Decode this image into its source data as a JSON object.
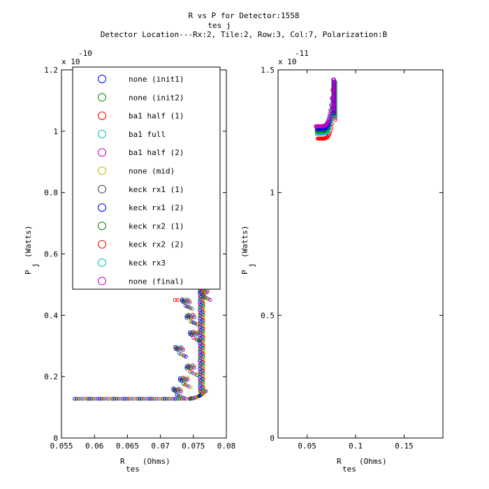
{
  "title": {
    "line1": "R    vs P  for Detector:1558",
    "line1_sub": "tes     j",
    "line2": "Detector Location---Rx:2, Tile:2, Row:3, Col:7, Polarization:B"
  },
  "series": [
    {
      "name": "none (init1)",
      "color": "#0000ff"
    },
    {
      "name": "none (init2)",
      "color": "#008000"
    },
    {
      "name": "ba1 half (1)",
      "color": "#ff0000"
    },
    {
      "name": "ba1 full",
      "color": "#00bfbf"
    },
    {
      "name": "ba1 half (2)",
      "color": "#bf00bf"
    },
    {
      "name": "none (mid)",
      "color": "#bfbf00"
    },
    {
      "name": "keck rx1 (1)",
      "color": "#404040"
    },
    {
      "name": "keck rx1 (2)",
      "color": "#0000ff"
    },
    {
      "name": "keck rx2 (1)",
      "color": "#008000"
    },
    {
      "name": "keck rx2 (2)",
      "color": "#ff0000"
    },
    {
      "name": "keck rx3",
      "color": "#00bfbf"
    },
    {
      "name": "none (final)",
      "color": "#bf00bf"
    }
  ],
  "chart_data": [
    {
      "type": "scatter",
      "xlabel": "R",
      "xlabel_sub": "tes",
      "xlabel_unit": "(Ohms)",
      "ylabel": "P",
      "ylabel_sub": "j",
      "ylabel_unit": "(Watts)",
      "xlim": [
        0.055,
        0.08
      ],
      "ylim": [
        0,
        1.2e-10
      ],
      "x_ticks": [
        0.055,
        0.06,
        0.065,
        0.07,
        0.075,
        0.08
      ],
      "x_tick_labels": [
        "0.055",
        "0.06",
        "0.065",
        "0.07",
        "0.075",
        "0.08"
      ],
      "y_ticks": [
        0,
        2e-11,
        4e-11,
        6e-11,
        8e-11,
        1e-10,
        1.2e-10
      ],
      "y_tick_labels": [
        "0",
        "0.2",
        "0.4",
        "0.6",
        "0.8",
        "1",
        "1.2"
      ],
      "y_multiplier": "x 10",
      "y_multiplier_exp": "-10",
      "legend_position": "top-left",
      "grid": false,
      "baseline": {
        "x_start": 0.057,
        "x_end": 0.0745,
        "y": 1.28e-11
      },
      "clusters": [
        {
          "x": 0.0725,
          "y": 1.55e-11
        },
        {
          "x": 0.0735,
          "y": 1.9e-11
        },
        {
          "x": 0.0745,
          "y": 2.3e-11
        },
        {
          "x": 0.0728,
          "y": 2.9e-11
        },
        {
          "x": 0.075,
          "y": 3.4e-11
        },
        {
          "x": 0.0745,
          "y": 3.95e-11
        },
        {
          "x": 0.0738,
          "y": 4.45e-11
        },
        {
          "x": 0.0765,
          "y": 4.75e-11
        }
      ]
    },
    {
      "type": "scatter",
      "xlabel": "R",
      "xlabel_sub": "tes",
      "xlabel_unit": "(Ohms)",
      "ylabel": "P",
      "ylabel_sub": "j",
      "ylabel_unit": "(Watts)",
      "xlim": [
        0.02,
        0.19
      ],
      "ylim": [
        0,
        1.5e-11
      ],
      "x_ticks": [
        0.05,
        0.1,
        0.15
      ],
      "x_tick_labels": [
        "0.05",
        "0.1",
        "0.15"
      ],
      "y_ticks": [
        0,
        5e-12,
        1e-11,
        1.5e-11
      ],
      "y_tick_labels": [
        "0",
        "0.5",
        "1",
        "1.5"
      ],
      "y_multiplier": "x 10",
      "y_multiplier_exp": "-11",
      "grid": false,
      "curves": [
        {
          "series": 2,
          "x_start": 0.061,
          "x_end": 0.079,
          "y_min": 1.22e-11,
          "y_max": 1.45e-11
        },
        {
          "series": 3,
          "x_start": 0.06,
          "x_end": 0.0785,
          "y_min": 1.24e-11,
          "y_max": 1.45e-11
        },
        {
          "series": 1,
          "x_start": 0.06,
          "x_end": 0.078,
          "y_min": 1.25e-11,
          "y_max": 1.45e-11
        },
        {
          "series": 0,
          "x_start": 0.06,
          "x_end": 0.0775,
          "y_min": 1.26e-11,
          "y_max": 1.46e-11
        },
        {
          "series": 4,
          "x_start": 0.059,
          "x_end": 0.077,
          "y_min": 1.27e-11,
          "y_max": 1.46e-11
        }
      ]
    }
  ]
}
